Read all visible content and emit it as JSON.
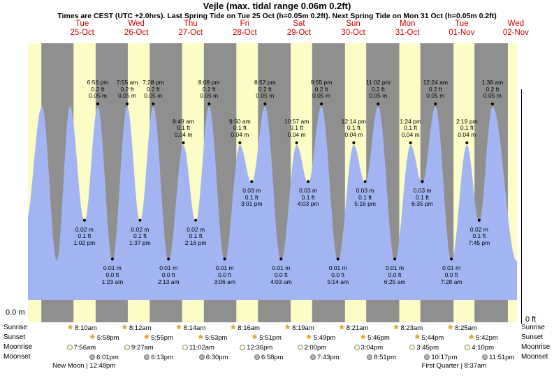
{
  "header": {
    "title": "Vejle (max. tidal range 0.06m 0.2ft)",
    "subtitle": "Times are CEST (UTC +2.0hrs). Last Spring Tide on Tue 25 Oct (h=0.05m 0.2ft). Next Spring Tide on Mon 31 Oct (h=0.05m 0.2ft)"
  },
  "axes": {
    "left_label": "0.0 m",
    "right_label": "0 ft"
  },
  "colors": {
    "night_bg": "#8f8f8f",
    "day_band": "#fcfcc6",
    "tide_fill": "#a2b5f2",
    "day_label": "#d40000",
    "dot": "#000000",
    "star": "#f0a41e",
    "moonrise_fill": "#ffffd9",
    "moonrise_border": "#8f8f74",
    "moonset_fill": "#b3b3b3",
    "moonset_border": "#787878"
  },
  "rows": {
    "sunrise": "Sunrise",
    "sunset": "Sunset",
    "moonrise": "Moonrise",
    "moonset": "Moonset"
  },
  "prev_day_sunset_hour": 17.93,
  "days": [
    {
      "name": "Tue",
      "date": "25-Oct",
      "sunrise": {
        "label": "8:10am",
        "hour": 8.167
      },
      "sunset": {
        "label": "5:58pm",
        "hour": 17.967
      },
      "moonrise": {
        "label": "7:56am",
        "hour": 7.933
      },
      "moonset": {
        "label": "6:01pm",
        "hour": 18.017
      }
    },
    {
      "name": "Wed",
      "date": "26-Oct",
      "sunrise": {
        "label": "8:12am",
        "hour": 8.2
      },
      "sunset": {
        "label": "5:55pm",
        "hour": 17.917
      },
      "moonrise": {
        "label": "9:27am",
        "hour": 9.45
      },
      "moonset": {
        "label": "6:13pm",
        "hour": 18.217
      }
    },
    {
      "name": "Thu",
      "date": "27-Oct",
      "sunrise": {
        "label": "8:14am",
        "hour": 8.233
      },
      "sunset": {
        "label": "5:53pm",
        "hour": 17.883
      },
      "moonrise": {
        "label": "11:02am",
        "hour": 11.033
      },
      "moonset": {
        "label": "6:30pm",
        "hour": 18.5
      }
    },
    {
      "name": "Fri",
      "date": "28-Oct",
      "sunrise": {
        "label": "8:16am",
        "hour": 8.267
      },
      "sunset": {
        "label": "5:51pm",
        "hour": 17.85
      },
      "moonrise": {
        "label": "12:36pm",
        "hour": 12.6
      },
      "moonset": {
        "label": "6:58pm",
        "hour": 18.967
      }
    },
    {
      "name": "Sat",
      "date": "29-Oct",
      "sunrise": {
        "label": "8:19am",
        "hour": 8.317
      },
      "sunset": {
        "label": "5:49pm",
        "hour": 17.817
      },
      "moonrise": {
        "label": "2:00pm",
        "hour": 14.0
      },
      "moonset": {
        "label": "7:43pm",
        "hour": 19.717
      }
    },
    {
      "name": "Sun",
      "date": "30-Oct",
      "sunrise": {
        "label": "8:21am",
        "hour": 8.35
      },
      "sunset": {
        "label": "5:46pm",
        "hour": 17.767
      },
      "moonrise": {
        "label": "3:04pm",
        "hour": 15.067
      },
      "moonset": {
        "label": "8:51pm",
        "hour": 20.85
      }
    },
    {
      "name": "Mon",
      "date": "31-Oct",
      "sunrise": {
        "label": "8:23am",
        "hour": 8.383
      },
      "sunset": {
        "label": "5:44pm",
        "hour": 17.733
      },
      "moonrise": {
        "label": "3:45pm",
        "hour": 15.75
      },
      "moonset": {
        "label": "10:17pm",
        "hour": 22.283
      }
    },
    {
      "name": "Tue",
      "date": "01-Nov",
      "sunrise": {
        "label": "8:25am",
        "hour": 8.417
      },
      "sunset": {
        "label": "5:42pm",
        "hour": 17.7
      },
      "moonrise": {
        "label": "4:10pm",
        "hour": 16.167
      },
      "moonset": {
        "label": "11:51pm",
        "hour": 23.85
      }
    },
    {
      "name": "Wed",
      "date": "02-Nov",
      "daylight_start_hour": 8.45
    }
  ],
  "moon_phases": [
    {
      "label": "New Moon | 12:48pm",
      "day_index": 0,
      "hour": 12.8
    },
    {
      "label": "First Quarter | 8:37am",
      "day_index": 7,
      "hour": 8.617
    }
  ],
  "chart_data": {
    "type": "area",
    "ylabel_left": "0.0 m",
    "ylabel_right": "0 ft",
    "ylim_m": [
      0,
      0.065
    ],
    "events": [
      {
        "day": -1,
        "hour": 11.0,
        "h": 0.02,
        "annotate": false
      },
      {
        "day": -1,
        "hour": 18.2,
        "h": 0.05,
        "annotate": false
      },
      {
        "day": 0,
        "hour": 0.8,
        "h": 0.01,
        "annotate": false
      },
      {
        "day": 0,
        "hour": 6.6,
        "h": 0.05,
        "annotate": false
      },
      {
        "day": 0,
        "hour": 13.033,
        "h": 0.02,
        "type": "low",
        "time": "1:02 pm",
        "ft": "0.1 ft",
        "m": "0.02 m",
        "annotate": true
      },
      {
        "day": 0,
        "hour": 18.933,
        "h": 0.05,
        "type": "high",
        "time": "6:56 pm",
        "ft": "0.2 ft",
        "m": "0.05 m",
        "annotate": true
      },
      {
        "day": 1,
        "hour": 1.383,
        "h": 0.01,
        "type": "low",
        "time": "1:23 am",
        "ft": "0.0 ft",
        "m": "0.01 m",
        "annotate": true
      },
      {
        "day": 1,
        "hour": 7.917,
        "h": 0.05,
        "type": "high",
        "time": "7:55 am",
        "ft": "0.2 ft",
        "m": "0.05 m",
        "annotate": true
      },
      {
        "day": 1,
        "hour": 13.617,
        "h": 0.02,
        "type": "low",
        "time": "1:37 pm",
        "ft": "0.1 ft",
        "m": "0.02 m",
        "annotate": true
      },
      {
        "day": 1,
        "hour": 19.467,
        "h": 0.05,
        "type": "high",
        "time": "7:28 pm",
        "ft": "0.2 ft",
        "m": "0.05 m",
        "annotate": true
      },
      {
        "day": 2,
        "hour": 2.217,
        "h": 0.01,
        "type": "low",
        "time": "2:13 am",
        "ft": "0.0 ft",
        "m": "0.01 m",
        "annotate": true
      },
      {
        "day": 2,
        "hour": 8.817,
        "h": 0.04,
        "type": "high",
        "time": "8:49 am",
        "ft": "0.1 ft",
        "m": "0.04 m",
        "annotate": true
      },
      {
        "day": 2,
        "hour": 14.267,
        "h": 0.02,
        "type": "low",
        "time": "2:16 pm",
        "ft": "0.1 ft",
        "m": "0.02 m",
        "annotate": true
      },
      {
        "day": 2,
        "hour": 20.15,
        "h": 0.05,
        "type": "high",
        "time": "8:09 pm",
        "ft": "0.2 ft",
        "m": "0.05 m",
        "annotate": true
      },
      {
        "day": 3,
        "hour": 3.1,
        "h": 0.01,
        "type": "low",
        "time": "3:06 am",
        "ft": "0.0 ft",
        "m": "0.01 m",
        "annotate": true
      },
      {
        "day": 3,
        "hour": 9.833,
        "h": 0.04,
        "type": "high",
        "time": "9:50 am",
        "ft": "0.1 ft",
        "m": "0.04 m",
        "annotate": true
      },
      {
        "day": 3,
        "hour": 15.017,
        "h": 0.03,
        "type": "low",
        "time": "3:01 pm",
        "ft": "0.1 ft",
        "m": "0.03 m",
        "annotate": true
      },
      {
        "day": 3,
        "hour": 20.95,
        "h": 0.05,
        "type": "high",
        "time": "8:57 pm",
        "ft": "0.2 ft",
        "m": "0.05 m",
        "annotate": true
      },
      {
        "day": 4,
        "hour": 4.05,
        "h": 0.01,
        "type": "low",
        "time": "4:03 am",
        "ft": "0.0 ft",
        "m": "0.01 m",
        "annotate": true
      },
      {
        "day": 4,
        "hour": 10.95,
        "h": 0.04,
        "type": "high",
        "time": "10:57 am",
        "ft": "0.1 ft",
        "m": "0.04 m",
        "annotate": true
      },
      {
        "day": 4,
        "hour": 16.05,
        "h": 0.03,
        "type": "low",
        "time": "4:03 pm",
        "ft": "0.1 ft",
        "m": "0.03 m",
        "annotate": true
      },
      {
        "day": 4,
        "hour": 21.917,
        "h": 0.05,
        "type": "high",
        "time": "9:55 pm",
        "ft": "0.2 ft",
        "m": "0.05 m",
        "annotate": true
      },
      {
        "day": 5,
        "hour": 5.233,
        "h": 0.01,
        "type": "low",
        "time": "5:14 am",
        "ft": "0.0 ft",
        "m": "0.01 m",
        "annotate": true
      },
      {
        "day": 5,
        "hour": 12.233,
        "h": 0.04,
        "type": "high",
        "time": "12:14 pm",
        "ft": "0.1 ft",
        "m": "0.04 m",
        "annotate": true
      },
      {
        "day": 5,
        "hour": 17.267,
        "h": 0.03,
        "type": "low",
        "time": "5:16 pm",
        "ft": "0.1 ft",
        "m": "0.03 m",
        "annotate": true
      },
      {
        "day": 5,
        "hour": 23.033,
        "h": 0.05,
        "type": "high",
        "time": "11:02 pm",
        "ft": "0.2 ft",
        "m": "0.05 m",
        "annotate": true
      },
      {
        "day": 6,
        "hour": 6.417,
        "h": 0.01,
        "type": "low",
        "time": "6:25 am",
        "ft": "0.0 ft",
        "m": "0.01 m",
        "annotate": true
      },
      {
        "day": 6,
        "hour": 13.4,
        "h": 0.04,
        "type": "high",
        "time": "1:24 pm",
        "ft": "0.1 ft",
        "m": "0.04 m",
        "annotate": true
      },
      {
        "day": 6,
        "hour": 18.583,
        "h": 0.03,
        "type": "low",
        "time": "6:35 pm",
        "ft": "0.1 ft",
        "m": "0.03 m",
        "annotate": true
      },
      {
        "day": 7,
        "hour": 0.4,
        "h": 0.05,
        "type": "high",
        "time": "12:24 am",
        "ft": "0.2 ft",
        "m": "0.05 m",
        "annotate": true
      },
      {
        "day": 7,
        "hour": 7.467,
        "h": 0.01,
        "type": "low",
        "time": "7:28 am",
        "ft": "0.0 ft",
        "m": "0.01 m",
        "annotate": true
      },
      {
        "day": 7,
        "hour": 14.317,
        "h": 0.04,
        "type": "high",
        "time": "2:19 pm",
        "ft": "0.1 ft",
        "m": "0.04 m",
        "annotate": true
      },
      {
        "day": 7,
        "hour": 19.75,
        "h": 0.02,
        "type": "low",
        "time": "7:45 pm",
        "ft": "0.1 ft",
        "m": "0.02 m",
        "annotate": true
      },
      {
        "day": 8,
        "hour": 1.633,
        "h": 0.05,
        "type": "high",
        "time": "1:38 am",
        "ft": "0.2 ft",
        "m": "0.05 m",
        "annotate": true
      },
      {
        "day": 8,
        "hour": 12.4,
        "h": 0.01,
        "annotate": false
      }
    ]
  }
}
